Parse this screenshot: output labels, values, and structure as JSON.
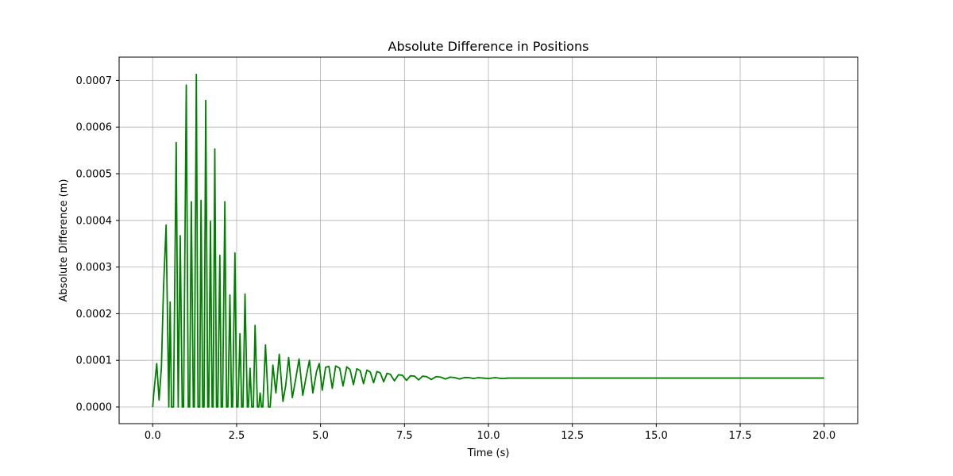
{
  "chart_data": {
    "type": "line",
    "title": "Absolute Difference in Positions",
    "xlabel": "Time (s)",
    "ylabel": "Absolute Difference (m)",
    "xlim": [
      -1.0,
      21.0
    ],
    "ylim": [
      -3.57e-05,
      0.00075
    ],
    "xticks": [
      0.0,
      2.5,
      5.0,
      7.5,
      10.0,
      12.5,
      15.0,
      17.5,
      20.0
    ],
    "xtick_labels": [
      "0.0",
      "2.5",
      "5.0",
      "7.5",
      "10.0",
      "12.5",
      "15.0",
      "17.5",
      "20.0"
    ],
    "yticks": [
      0.0,
      0.0001,
      0.0002,
      0.0003,
      0.0004,
      0.0005,
      0.0006,
      0.0007
    ],
    "ytick_labels": [
      "0.0000",
      "0.0001",
      "0.0002",
      "0.0003",
      "0.0004",
      "0.0005",
      "0.0006",
      "0.0007"
    ],
    "grid": true,
    "legend": "none",
    "series": [
      {
        "color": "#008000",
        "points": [
          [
            0.0,
            0.0
          ],
          [
            0.04,
            3.5e-05
          ],
          [
            0.12,
            9.3e-05
          ],
          [
            0.19,
            1.5e-05
          ],
          [
            0.26,
            8.5e-05
          ],
          [
            0.32,
            0.00025
          ],
          [
            0.4,
            0.00039
          ],
          [
            0.48,
            0.0
          ],
          [
            0.52,
            0.000225
          ],
          [
            0.56,
            0.0
          ],
          [
            0.62,
            0.0
          ],
          [
            0.7,
            0.000567
          ],
          [
            0.76,
            0.0
          ],
          [
            0.82,
            0.000367
          ],
          [
            0.88,
            0.0
          ],
          [
            0.92,
            0.0
          ],
          [
            1.0,
            0.00069
          ],
          [
            1.06,
            0.0
          ],
          [
            1.1,
            0.0
          ],
          [
            1.15,
            0.00044
          ],
          [
            1.21,
            0.0
          ],
          [
            1.24,
            0.0
          ],
          [
            1.3,
            0.000713
          ],
          [
            1.35,
            0.0
          ],
          [
            1.4,
            0.0
          ],
          [
            1.44,
            0.000443
          ],
          [
            1.49,
            0.0
          ],
          [
            1.53,
            0.0
          ],
          [
            1.58,
            0.000657
          ],
          [
            1.64,
            0.0
          ],
          [
            1.67,
            0.0
          ],
          [
            1.72,
            0.000398
          ],
          [
            1.77,
            0.0
          ],
          [
            1.8,
            0.0
          ],
          [
            1.85,
            0.000553
          ],
          [
            1.9,
            0.0
          ],
          [
            1.94,
            0.0
          ],
          [
            2.0,
            0.000325
          ],
          [
            2.04,
            0.0
          ],
          [
            2.08,
            0.0
          ],
          [
            2.15,
            0.00044
          ],
          [
            2.2,
            0.0
          ],
          [
            2.24,
            0.0
          ],
          [
            2.3,
            0.00024
          ],
          [
            2.35,
            0.0
          ],
          [
            2.38,
            0.0
          ],
          [
            2.45,
            0.00033
          ],
          [
            2.5,
            0.0
          ],
          [
            2.54,
            0.0
          ],
          [
            2.6,
            0.000157
          ],
          [
            2.65,
            0.0
          ],
          [
            2.69,
            0.0
          ],
          [
            2.75,
            0.000242
          ],
          [
            2.82,
            0.0
          ],
          [
            2.85,
            0.0
          ],
          [
            2.9,
            8.3e-05
          ],
          [
            2.95,
            0.0
          ],
          [
            3.0,
            0.0
          ],
          [
            3.05,
            0.000175
          ],
          [
            3.12,
            0.0
          ],
          [
            3.16,
            0.0
          ],
          [
            3.2,
            3e-05
          ],
          [
            3.24,
            0.0
          ],
          [
            3.28,
            0.0
          ],
          [
            3.36,
            0.000133
          ],
          [
            3.45,
            0.0
          ],
          [
            3.5,
            0.0
          ],
          [
            3.58,
            9e-05
          ],
          [
            3.67,
            3e-05
          ],
          [
            3.77,
            0.000113
          ],
          [
            3.88,
            1.2e-05
          ],
          [
            3.96,
            4.5e-05
          ],
          [
            4.05,
            0.000106
          ],
          [
            4.16,
            2e-05
          ],
          [
            4.26,
            6e-05
          ],
          [
            4.36,
            0.000103
          ],
          [
            4.47,
            2.5e-05
          ],
          [
            4.58,
            6.8e-05
          ],
          [
            4.67,
            0.0001
          ],
          [
            4.77,
            3e-05
          ],
          [
            4.88,
            7.6e-05
          ],
          [
            4.96,
            9.3e-05
          ],
          [
            5.05,
            3.6e-05
          ],
          [
            5.15,
            8.5e-05
          ],
          [
            5.25,
            8.7e-05
          ],
          [
            5.35,
            4e-05
          ],
          [
            5.45,
            8.8e-05
          ],
          [
            5.57,
            8.3e-05
          ],
          [
            5.67,
            4.5e-05
          ],
          [
            5.78,
            8.6e-05
          ],
          [
            5.88,
            8e-05
          ],
          [
            5.98,
            4.8e-05
          ],
          [
            6.08,
            8.2e-05
          ],
          [
            6.18,
            7.8e-05
          ],
          [
            6.28,
            5e-05
          ],
          [
            6.38,
            7.9e-05
          ],
          [
            6.48,
            7.5e-05
          ],
          [
            6.58,
            5.2e-05
          ],
          [
            6.68,
            7.6e-05
          ],
          [
            6.78,
            7.3e-05
          ],
          [
            6.88,
            5.4e-05
          ],
          [
            6.98,
            7.2e-05
          ],
          [
            7.08,
            7e-05
          ],
          [
            7.2,
            5.6e-05
          ],
          [
            7.32,
            6.9e-05
          ],
          [
            7.44,
            6.8e-05
          ],
          [
            7.56,
            5.7e-05
          ],
          [
            7.68,
            6.7e-05
          ],
          [
            7.8,
            6.6e-05
          ],
          [
            7.92,
            5.8e-05
          ],
          [
            8.04,
            6.6e-05
          ],
          [
            8.16,
            6.5e-05
          ],
          [
            8.3,
            5.9e-05
          ],
          [
            8.44,
            6.5e-05
          ],
          [
            8.58,
            6.4e-05
          ],
          [
            8.72,
            6e-05
          ],
          [
            8.86,
            6.4e-05
          ],
          [
            9.0,
            6.3e-05
          ],
          [
            9.14,
            6e-05
          ],
          [
            9.28,
            6.3e-05
          ],
          [
            9.42,
            6.3e-05
          ],
          [
            9.56,
            6.1e-05
          ],
          [
            9.7,
            6.3e-05
          ],
          [
            9.84,
            6.2e-05
          ],
          [
            10.0,
            6.1e-05
          ],
          [
            10.2,
            6.3e-05
          ],
          [
            10.4,
            6.1e-05
          ],
          [
            10.6,
            6.2e-05
          ],
          [
            10.8,
            6.2e-05
          ],
          [
            11.0,
            6.2e-05
          ],
          [
            11.5,
            6.2e-05
          ],
          [
            12.5,
            6.2e-05
          ],
          [
            15.0,
            6.2e-05
          ],
          [
            17.5,
            6.2e-05
          ],
          [
            20.0,
            6.2e-05
          ]
        ]
      }
    ]
  }
}
